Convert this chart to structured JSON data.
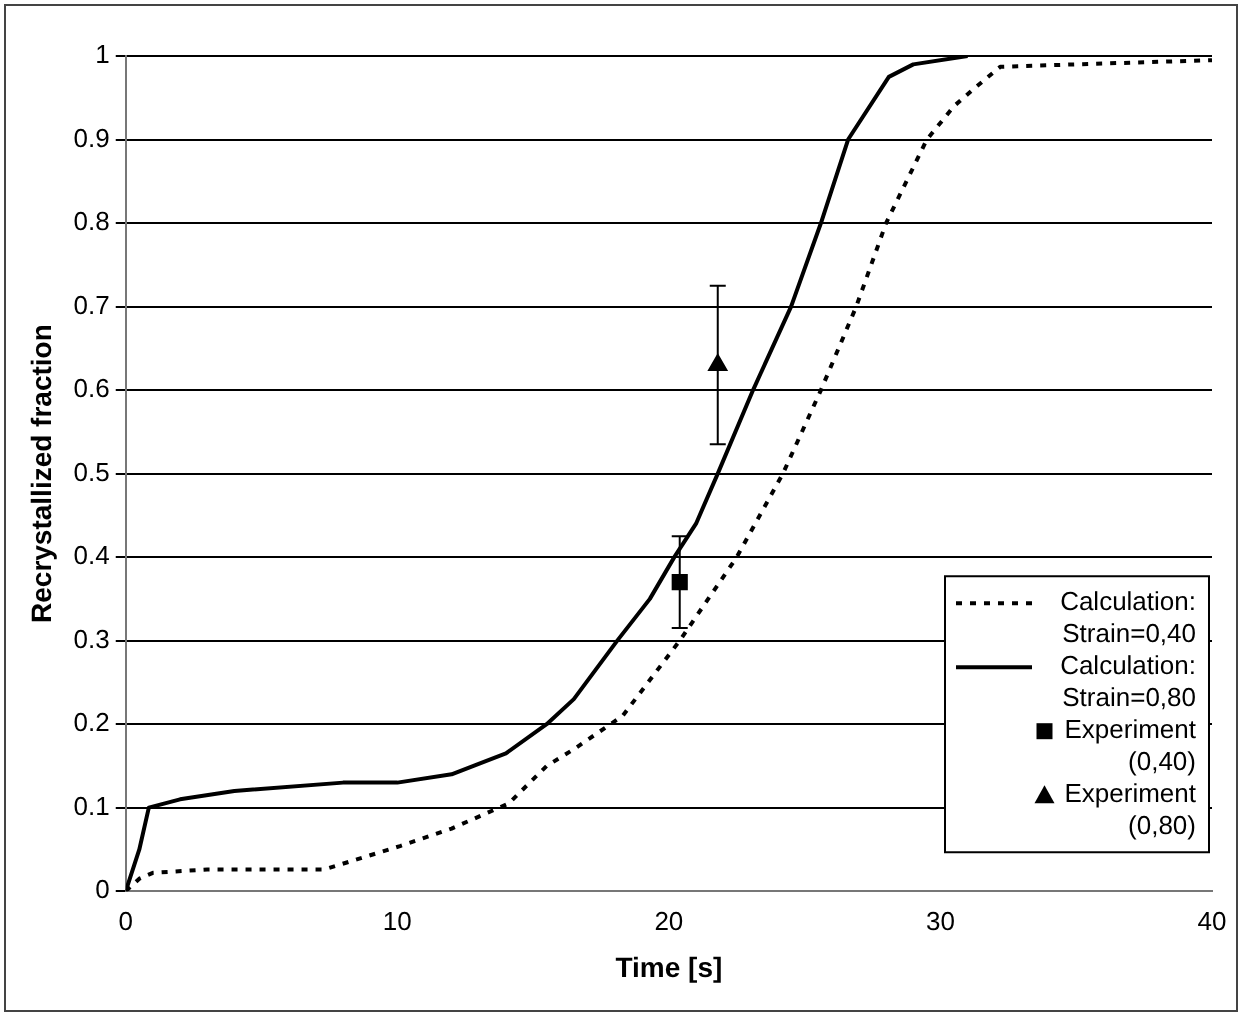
{
  "chart_data": {
    "type": "line",
    "xlabel": "Time [s]",
    "ylabel": "Recrystallized fraction",
    "xlim": [
      0,
      40
    ],
    "xticks": [
      0,
      10,
      20,
      30,
      40
    ],
    "ylim": [
      0,
      1
    ],
    "yticks": [
      0,
      0.1,
      0.2,
      0.3,
      0.4,
      0.5,
      0.6,
      0.7,
      0.8,
      0.9,
      1
    ],
    "grid": "y",
    "legend": "bottom right",
    "series": [
      {
        "name": "Calculation: Strain=0,40",
        "line_style": "dotted",
        "marker": "none",
        "color": "#000000",
        "x": [
          0,
          0.5,
          1,
          3,
          7.3,
          10.1,
          12,
          14.1,
          15.5,
          16.5,
          18.3,
          20.4,
          22.5,
          24.2,
          25.6,
          26.9,
          28,
          29.5,
          30.5,
          31.2,
          32.2,
          35,
          40
        ],
        "values": [
          0,
          0.015,
          0.022,
          0.026,
          0.026,
          0.054,
          0.075,
          0.105,
          0.15,
          0.17,
          0.21,
          0.3,
          0.4,
          0.5,
          0.6,
          0.7,
          0.8,
          0.9,
          0.94,
          0.96,
          0.987,
          0.99,
          0.995
        ]
      },
      {
        "name": "Calculation: Strain=0,80",
        "line_style": "solid",
        "marker": "none",
        "color": "#000000",
        "x": [
          0,
          0.5,
          0.85,
          2,
          4,
          8,
          10,
          12,
          14,
          15.5,
          16.5,
          18.1,
          19.3,
          20.2,
          21,
          21.8,
          23.1,
          24.5,
          25.6,
          26.6,
          28.1,
          29,
          31
        ],
        "values": [
          0,
          0.05,
          0.1,
          0.11,
          0.12,
          0.13,
          0.13,
          0.14,
          0.165,
          0.2,
          0.23,
          0.3,
          0.35,
          0.4,
          0.44,
          0.5,
          0.6,
          0.7,
          0.8,
          0.9,
          0.975,
          0.99,
          1
        ]
      },
      {
        "name": "Experiment (0,40)",
        "type": "scatter",
        "marker": "square",
        "color": "#000000",
        "x": [
          20.4
        ],
        "values": [
          0.37
        ],
        "errors": [
          [
            0.315,
            0.425
          ]
        ]
      },
      {
        "name": "Experiment (0,80)",
        "type": "scatter",
        "marker": "triangle",
        "color": "#000000",
        "x": [
          21.8
        ],
        "values": [
          0.63
        ],
        "errors": [
          [
            0.535,
            0.725
          ]
        ]
      }
    ]
  }
}
